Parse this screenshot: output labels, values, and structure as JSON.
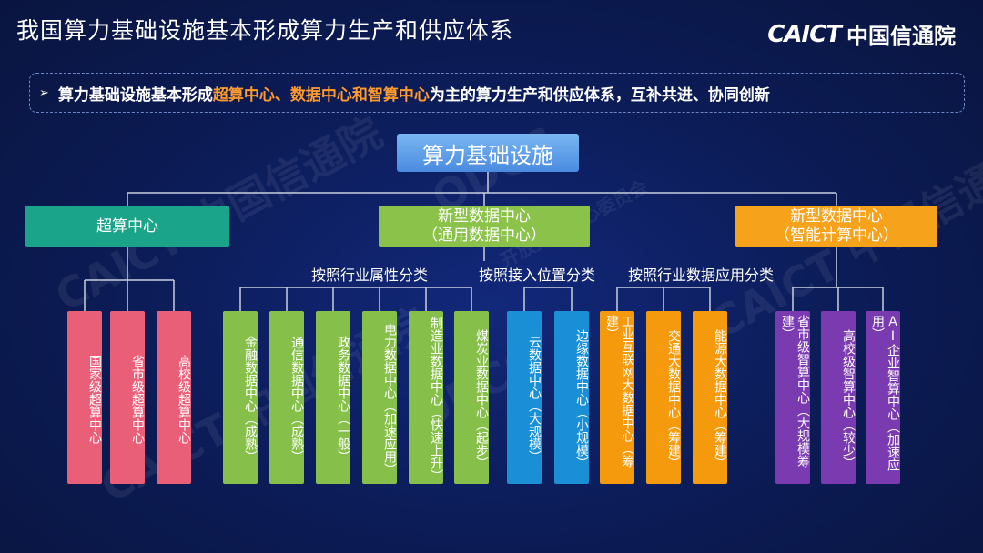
{
  "header": {
    "title": "我国算力基础设施基本形成算力生产和供应体系"
  },
  "logo": {
    "en": "CAICT",
    "cn": "中国信通院"
  },
  "banner": {
    "pre": "算力基础设施基本形成",
    "highlight": "超算中心、数据中心和智算中心",
    "post": "为主的算力生产和供应体系，互补共进、协同创新"
  },
  "watermarks": [
    "CAICT 中国信通院",
    "CAICT 中国信通院",
    "ODCC",
    "CAICT 中国信通院",
    "ODCC",
    "开放数据中心委员会"
  ],
  "tree": {
    "root": "算力基础设施",
    "categories": [
      {
        "lines": [
          "超算中心"
        ],
        "color": "#1aa58a"
      },
      {
        "lines": [
          "新型数据中心",
          "（通用数据中心）"
        ],
        "color": "#8bc34a"
      },
      {
        "lines": [
          "新型数据中心",
          "（智能计算中心）"
        ],
        "color": "#f7a21b"
      }
    ],
    "sub_labels": [
      "按照行业属性分类",
      "按照接入位置分类",
      "按照行业数据应用分类"
    ],
    "leaves": [
      "国家级超算中心",
      "省市级超算中心",
      "高校级超算中心",
      "金融数据中心（成熟）",
      "通信数据中心（成熟）",
      "政务数据中心（一般）",
      "电力数据中心（加速应用）",
      "制造业数据中心（快速上升）",
      "煤炭业数据中心（起步）",
      "云数据中心（大规模）",
      "边缘数据中心（小规模）",
      "工业互联网大数据中心（筹建）",
      "交通大数据中心（筹建）",
      "能源大数据中心（筹建）",
      "省市级智算中心（大规模筹建）",
      "高校级智算中心（较少）",
      "AI企业智算中心（加速应用）"
    ]
  }
}
